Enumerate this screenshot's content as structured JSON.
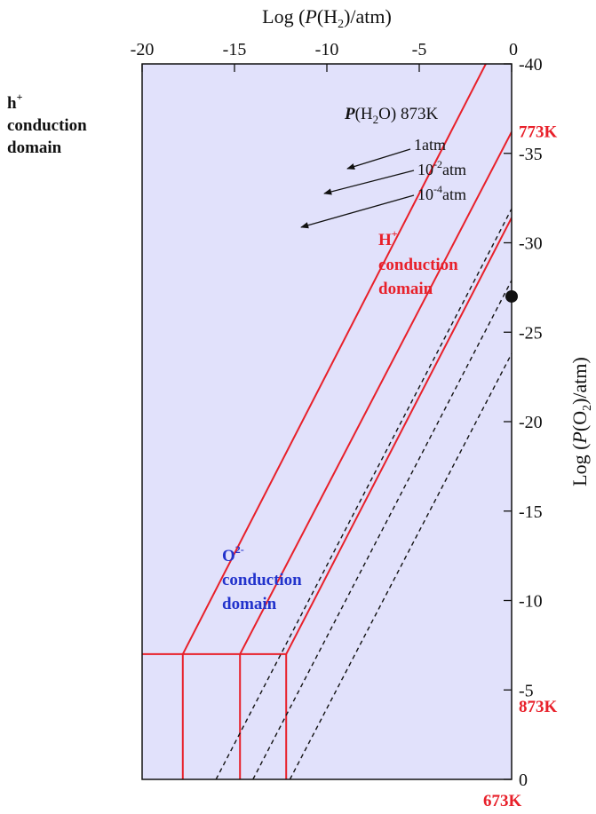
{
  "chart_data": {
    "type": "line",
    "x_axis": {
      "label_prefix": "Log (",
      "label_var": "P",
      "label_species": "(H",
      "label_sub": "2",
      "label_suffix": ")/atm)",
      "range": [
        -20,
        0
      ],
      "ticks": [
        -20,
        -15,
        -10,
        -5,
        0
      ],
      "tick_labels": [
        "-20",
        "-15",
        "-10",
        "-5",
        "0"
      ],
      "position": "top"
    },
    "y_axis": {
      "label_prefix": "Log (",
      "label_var": "P",
      "label_species": "(O",
      "label_sub": "2",
      "label_suffix": ")/atm)",
      "range": [
        -40,
        0
      ],
      "ticks": [
        0,
        -5,
        -10,
        -15,
        -20,
        -25,
        -30,
        -35,
        -40
      ],
      "tick_labels": [
        "0",
        "-5",
        "-10",
        "-15",
        "-20",
        "-25",
        "-30",
        "-35",
        "-40"
      ],
      "position": "right"
    },
    "grid": false,
    "background_color": "#e1e1fb",
    "boundary_color": "#e8202a",
    "dashed_color": "#111111",
    "boundary_series": [
      {
        "name": "673K",
        "name_color": "#e8202a",
        "x": [
          -17.8,
          -17.8,
          -17.8,
          -1.4
        ],
        "y": [
          0,
          -7,
          -7,
          -40
        ]
      },
      {
        "name": "773K",
        "name_color": "#e8202a",
        "x": [
          -14.7,
          -14.7,
          -14.7,
          0
        ],
        "y": [
          0,
          -7,
          -7,
          -36.2
        ]
      },
      {
        "name": "873K",
        "name_color": "#e8202a",
        "x": [
          -12.2,
          -12.2,
          -12.2,
          0
        ],
        "y": [
          0,
          -7,
          -7,
          -31.4
        ]
      }
    ],
    "h_boundary": {
      "x": [
        -20,
        -12.2
      ],
      "y": [
        -7,
        -7
      ]
    },
    "dashed_series": [
      {
        "name": "1atm",
        "x": [
          -12,
          0
        ],
        "y": [
          0,
          -23.8
        ]
      },
      {
        "name": "10^-2atm",
        "x": [
          -14,
          0
        ],
        "y": [
          0,
          -27.9
        ]
      },
      {
        "name": "10^-4atm",
        "x": [
          -16,
          0
        ],
        "y": [
          0,
          -31.9
        ]
      }
    ],
    "marker": {
      "x": 0,
      "y": -27.0
    },
    "annotations": {
      "title_bold": "P",
      "title_rest": "(H",
      "title_sub": "2",
      "title_end": "O) 873K",
      "p1": "1atm",
      "p2_base": "10",
      "p2_exp": "-2",
      "p2_unit": "atm",
      "p3_base": "10",
      "p3_exp": "-4",
      "p3_unit": "atm"
    },
    "domains": {
      "h_plus_base": "h",
      "h_plus_sup": "+",
      "h_plus_line2": "conduction",
      "h_plus_line3": "domain",
      "h_proton_base": "H",
      "h_proton_sup": "+",
      "h_proton_line2": "conduction",
      "h_proton_line3": "domain",
      "oxide_base": "O",
      "oxide_sup": "2-",
      "oxide_line2": "conduction",
      "oxide_line3": "domain"
    },
    "colors": {
      "h_plus": "#111111",
      "h_proton": "#e8202a",
      "oxide": "#2233cc",
      "temp_labels": "#e8202a"
    }
  }
}
